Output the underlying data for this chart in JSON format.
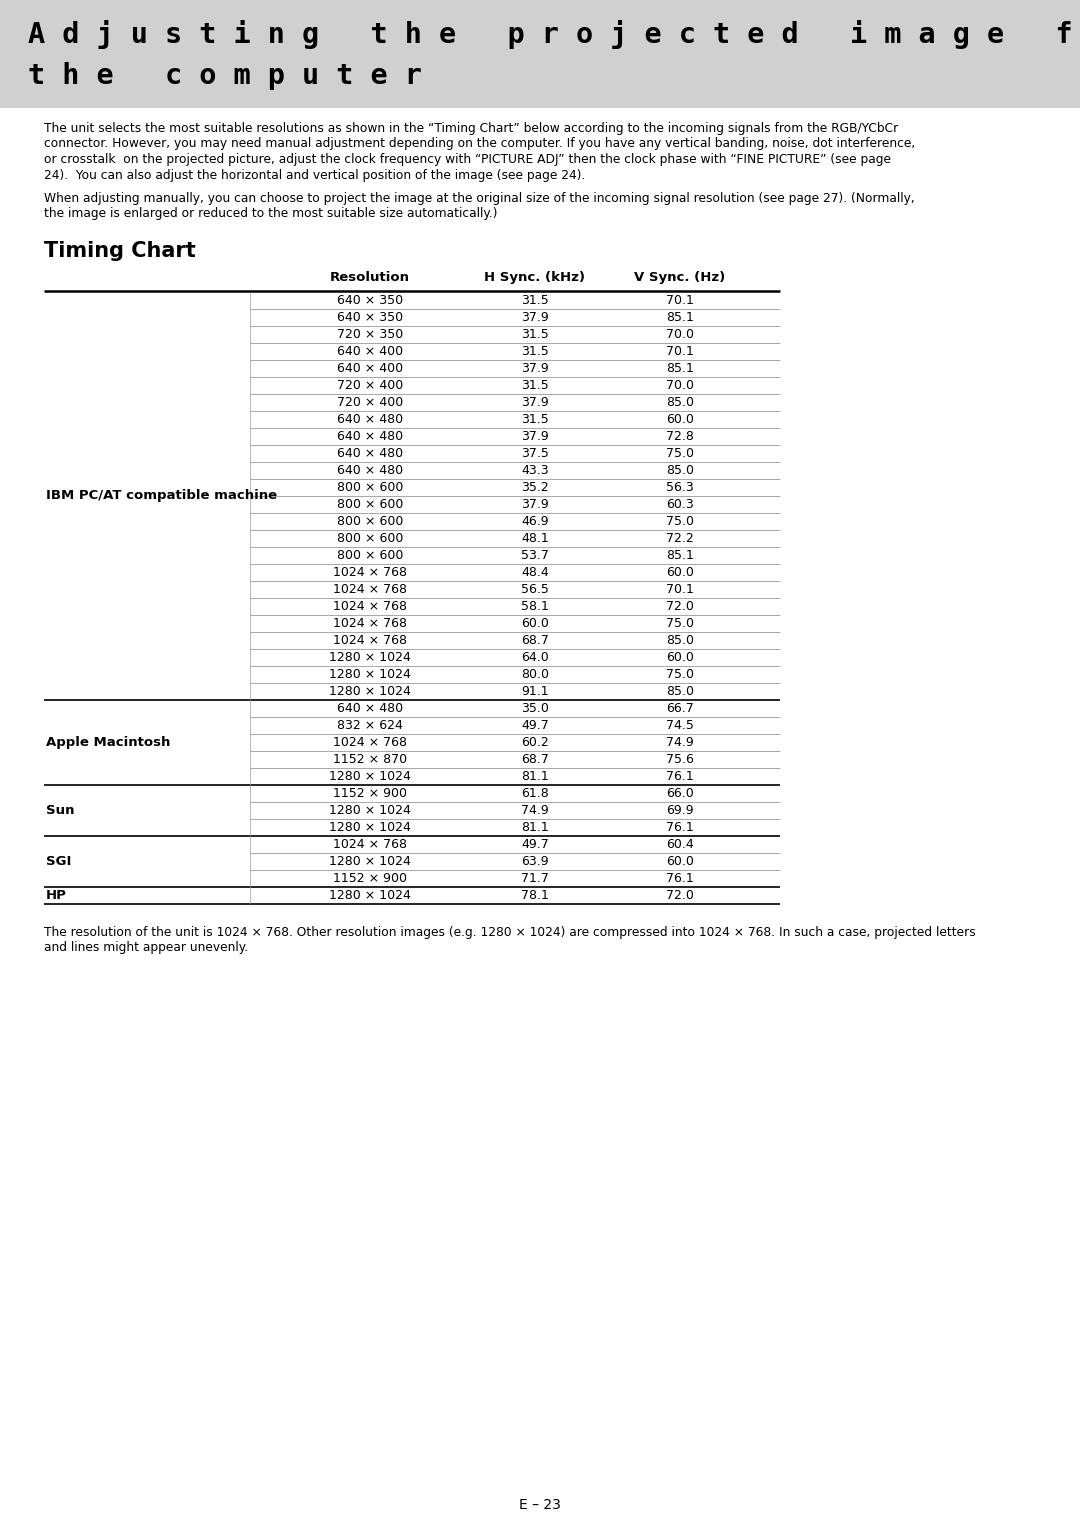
{
  "title_line1": "A d j u s t i n g   t h e   p r o j e c t e d   i m a g e   f r o m",
  "title_line2": "t h e   c o m p u t e r",
  "header_bg": "#d0d0d0",
  "body_bg": "#ffffff",
  "intro_para1": [
    "The unit selects the most suitable resolutions as shown in the “Timing Chart” below according to the incoming signals from the RGB/YCbCr",
    "connector. However, you may need manual adjustment depending on the computer. If you have any vertical banding, noise, dot interference,",
    "or crosstalk  on the projected picture, adjust the clock frequency with “PICTURE ADJ” then the clock phase with “FINE PICTURE” (see page",
    "24).  You can also adjust the horizontal and vertical position of the image (see page 24)."
  ],
  "intro_para2": [
    "When adjusting manually, you can choose to project the image at the original size of the incoming signal resolution (see page 27). (Normally,",
    "the image is enlarged or reduced to the most suitable size automatically.)"
  ],
  "section_title": "Timing Chart",
  "col_headers": [
    "Resolution",
    "H Sync. (kHz)",
    "V Sync. (Hz)"
  ],
  "footer_text": [
    "The resolution of the unit is 1024 × 768. Other resolution images (e.g. 1280 × 1024) are compressed into 1024 × 768. In such a case, projected letters",
    "and lines might appear unevenly."
  ],
  "page_number": "E – 23",
  "groups": [
    {
      "name": "IBM PC/AT compatible machine",
      "rows": [
        [
          "640 × 350",
          "31.5",
          "70.1"
        ],
        [
          "640 × 350",
          "37.9",
          "85.1"
        ],
        [
          "720 × 350",
          "31.5",
          "70.0"
        ],
        [
          "640 × 400",
          "31.5",
          "70.1"
        ],
        [
          "640 × 400",
          "37.9",
          "85.1"
        ],
        [
          "720 × 400",
          "31.5",
          "70.0"
        ],
        [
          "720 × 400",
          "37.9",
          "85.0"
        ],
        [
          "640 × 480",
          "31.5",
          "60.0"
        ],
        [
          "640 × 480",
          "37.9",
          "72.8"
        ],
        [
          "640 × 480",
          "37.5",
          "75.0"
        ],
        [
          "640 × 480",
          "43.3",
          "85.0"
        ],
        [
          "800 × 600",
          "35.2",
          "56.3"
        ],
        [
          "800 × 600",
          "37.9",
          "60.3"
        ],
        [
          "800 × 600",
          "46.9",
          "75.0"
        ],
        [
          "800 × 600",
          "48.1",
          "72.2"
        ],
        [
          "800 × 600",
          "53.7",
          "85.1"
        ],
        [
          "1024 × 768",
          "48.4",
          "60.0"
        ],
        [
          "1024 × 768",
          "56.5",
          "70.1"
        ],
        [
          "1024 × 768",
          "58.1",
          "72.0"
        ],
        [
          "1024 × 768",
          "60.0",
          "75.0"
        ],
        [
          "1024 × 768",
          "68.7",
          "85.0"
        ],
        [
          "1280 × 1024",
          "64.0",
          "60.0"
        ],
        [
          "1280 × 1024",
          "80.0",
          "75.0"
        ],
        [
          "1280 × 1024",
          "91.1",
          "85.0"
        ]
      ]
    },
    {
      "name": "Apple Macintosh",
      "rows": [
        [
          "640 × 480",
          "35.0",
          "66.7"
        ],
        [
          "832 × 624",
          "49.7",
          "74.5"
        ],
        [
          "1024 × 768",
          "60.2",
          "74.9"
        ],
        [
          "1152 × 870",
          "68.7",
          "75.6"
        ],
        [
          "1280 × 1024",
          "81.1",
          "76.1"
        ]
      ]
    },
    {
      "name": "Sun",
      "rows": [
        [
          "1152 × 900",
          "61.8",
          "66.0"
        ],
        [
          "1280 × 1024",
          "74.9",
          "69.9"
        ],
        [
          "1280 × 1024",
          "81.1",
          "76.1"
        ]
      ]
    },
    {
      "name": "SGI",
      "rows": [
        [
          "1024 × 768",
          "49.7",
          "60.4"
        ],
        [
          "1280 × 1024",
          "63.9",
          "60.0"
        ],
        [
          "1152 × 900",
          "71.7",
          "76.1"
        ]
      ]
    },
    {
      "name": "HP",
      "rows": [
        [
          "1280 × 1024",
          "78.1",
          "72.0"
        ]
      ]
    }
  ]
}
